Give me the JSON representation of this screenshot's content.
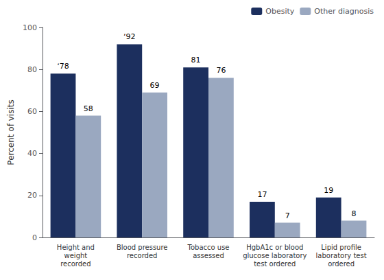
{
  "chart_data": {
    "type": "bar",
    "categories": [
      "Height and\nweight\nrecorded",
      "Blood pressure\nrecorded",
      "Tobacco use\nassessed",
      "HgbA1c or blood\nglucose laboratory\ntest ordered",
      "Lipid profile\nlaboratory test\nordered"
    ],
    "series": [
      {
        "name": "Obesity",
        "color": "#1c2f5e",
        "values": [
          78,
          92,
          81,
          17,
          19
        ],
        "value_labels": [
          "ʼ78",
          "ʼ92",
          "81",
          "17",
          "19"
        ]
      },
      {
        "name": "Other diagnosis",
        "color": "#9aa8c0",
        "values": [
          58,
          69,
          76,
          7,
          8
        ],
        "value_labels": [
          "58",
          "69",
          "76",
          "7",
          "8"
        ]
      }
    ],
    "ylabel": "Percent of visits",
    "ylim": [
      0,
      100
    ],
    "yticks": [
      0,
      20,
      40,
      60,
      80,
      100
    ],
    "grid": false,
    "legend": "upper right",
    "data_labels": true
  }
}
